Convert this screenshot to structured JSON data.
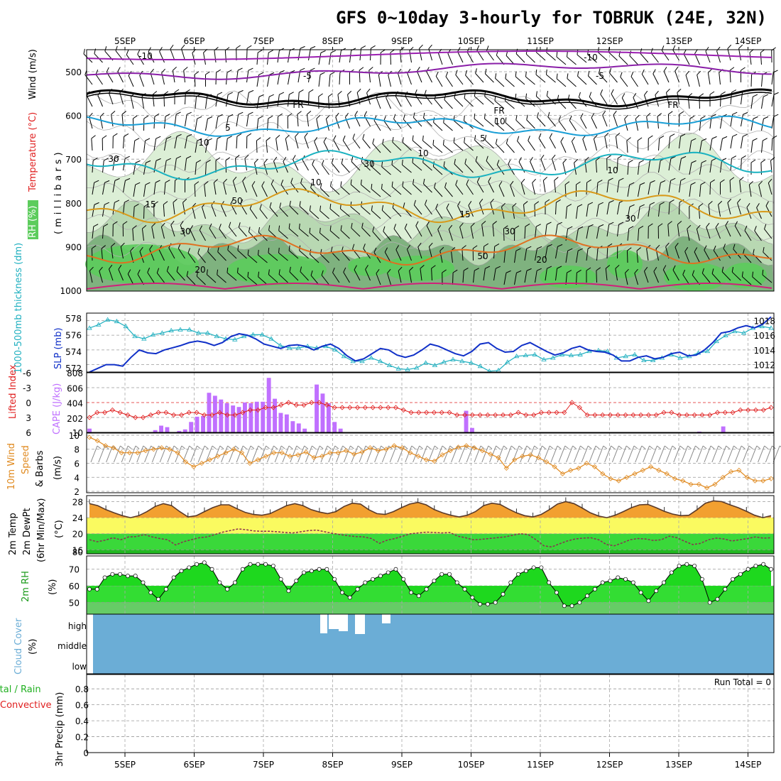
{
  "title": "GFS 0~10day 3-hourly for TOBRUK (24E, 32N)",
  "dates": [
    "5SEP",
    "6SEP",
    "7SEP",
    "8SEP",
    "9SEP",
    "10SEP",
    "11SEP",
    "12SEP",
    "13SEP",
    "14SEP"
  ],
  "colors": {
    "rh_light": "#dcefd6",
    "rh_mid": "#b8d8b2",
    "rh_dark": "#7fb27f",
    "rh_green": "#5ccc5c",
    "temp_m10": "#9a1fb0",
    "temp_m5": "#8a1fa8",
    "temp_0": "#000000",
    "temp_5": "#1a9fd6",
    "temp_10": "#1ab2c0",
    "temp_15": "#d89a1a",
    "temp_20": "#e07020",
    "temp_25": "#d0207a",
    "slp": "#1030c8",
    "thick": "#20b0c0",
    "cape": "#c070ff",
    "lifted": "#e02020",
    "wind10": "#e08a20",
    "t2m_fill": "#f2a030",
    "dewpt": "#8a3050",
    "rh2m": "#1ed81e",
    "cloud": "#6badd6",
    "grid": "#999999"
  },
  "upper_panel": {
    "y_label": "(millibars)",
    "pressure_ticks": [
      "500",
      "600",
      "700",
      "800",
      "900",
      "1000"
    ],
    "legend": {
      "wind": "Wind (m/s)",
      "temp": "Temperature (°C)",
      "rh": "RH (%)"
    },
    "isotherm_labels": [
      "-10",
      "-5",
      "FR",
      "5",
      "10",
      "15",
      "20",
      "-10",
      "-5",
      "FR",
      "5",
      "10",
      "15",
      "20",
      "FR"
    ],
    "rh_labels": [
      "30",
      "50",
      "30",
      "10",
      "30",
      "10",
      "50",
      "30",
      "30",
      "10"
    ]
  },
  "slp_panel": {
    "label_thick": "1000-500mb thickness (dm)",
    "label_slp": "SLP (mb)",
    "thick_ticks": [
      "578",
      "576",
      "574",
      "572"
    ],
    "slp_ticks": [
      "1018",
      "1016",
      "1014",
      "1012"
    ]
  },
  "cape_panel": {
    "label_li": "Lifted Index",
    "label_cape": "CAPE (J/kg)",
    "li_ticks": [
      "-6",
      "-3",
      "0",
      "3",
      "6"
    ],
    "cape_ticks": [
      "808",
      "606",
      "404",
      "202",
      "10"
    ]
  },
  "wind_panel": {
    "label": "10m Wind Speed & Barbs",
    "label_a": "10m Wind",
    "label_b": "Speed",
    "label_c": "& Barbs",
    "unit": "(m/s)",
    "ticks": [
      "10",
      "8",
      "6",
      "4",
      "2"
    ]
  },
  "temp_panel": {
    "label_a": "2m Temp",
    "label_b": "2m DewPt",
    "label_c": "(6hr Min/Max)",
    "unit": "(°C)",
    "ticks": [
      "28",
      "24",
      "20",
      "16",
      "80"
    ]
  },
  "rh_panel": {
    "label": "2m RH",
    "unit": "(%)",
    "ticks": [
      "70",
      "60",
      "50"
    ]
  },
  "cloud_panel": {
    "label": "Cloud Cover",
    "unit": "(%)",
    "levels": [
      "high",
      "middle",
      "low"
    ]
  },
  "precip_panel": {
    "label_a": "Total / Rain",
    "label_b": "Convective",
    "label_c": "3hr Precip (mm)",
    "run_total": "Run Total = 0",
    "ticks": [
      "0.8",
      "0.6",
      "0.4",
      "0.2",
      "0"
    ]
  },
  "chart_data": {
    "type": "line",
    "x": "3-hourly steps over 10 days (5 SEP – 14 SEP)",
    "series": [
      {
        "name": "SLP (mb)",
        "values": [
          1011,
          1011.5,
          1012,
          1012,
          1011.8,
          1013,
          1014,
          1013.6,
          1013.5,
          1014,
          1014.3,
          1014.6,
          1015,
          1015.2,
          1015,
          1014.6,
          1015,
          1015.8,
          1016.2,
          1016,
          1015.5,
          1014.8,
          1014.5,
          1014.2,
          1014.6,
          1014.7,
          1014.5,
          1014,
          1014.5,
          1014.8,
          1014.2,
          1013.2,
          1012.5,
          1012.8,
          1013.5,
          1014.2,
          1014,
          1013.3,
          1013,
          1013.3,
          1014,
          1014.8,
          1014.5,
          1014,
          1013.5,
          1013.2,
          1013.8,
          1014.8,
          1015,
          1014.2,
          1013.7,
          1013.8,
          1014.6,
          1015,
          1014.4,
          1013.8,
          1013.3,
          1013.6,
          1014.2,
          1014.5,
          1014,
          1013.8,
          1013.7,
          1013.3,
          1012.5,
          1012.5,
          1013,
          1013.2,
          1012.8,
          1013,
          1013.5,
          1013.7,
          1013.2,
          1013.3,
          1014,
          1015,
          1016.3,
          1016.5,
          1017,
          1017.3,
          1017,
          1017.5,
          1018.5
        ]
      },
      {
        "name": "1000-500mb thickness (dm)",
        "values": [
          576.8,
          577.2,
          577.8,
          577.6,
          577,
          575.8,
          575.5,
          576,
          576.2,
          576.5,
          576.6,
          576.6,
          576.2,
          576.2,
          575.8,
          575.5,
          575.4,
          575.8,
          576,
          576,
          575.5,
          574.7,
          574.4,
          574.4,
          574.6,
          574.4,
          574.6,
          574.2,
          573.4,
          572.8,
          572.8,
          573.2,
          572.8,
          572.3,
          571.9,
          571.8,
          572,
          572.6,
          572.3,
          572.7,
          573,
          572.8,
          572.6,
          572.2,
          571.6,
          571.7,
          572.7,
          573.4,
          573.5,
          573.6,
          573,
          573.2,
          573.6,
          573.5,
          573.6,
          574,
          574.1,
          574,
          573.2,
          573.4,
          573.6,
          572.9,
          572.9,
          573.2,
          573.6,
          573.2,
          573.4,
          573.8,
          574,
          575.2,
          575.9,
          576.4,
          576.2,
          576.8,
          577,
          576.8
        ]
      },
      {
        "name": "CAPE (J/kg)",
        "values": [
          60,
          10,
          10,
          10,
          10,
          10,
          10,
          10,
          10,
          10,
          10,
          40,
          100,
          80,
          10,
          30,
          50,
          150,
          220,
          230,
          540,
          500,
          450,
          400,
          370,
          350,
          410,
          400,
          420,
          420,
          740,
          460,
          270,
          250,
          160,
          130,
          60,
          10,
          650,
          530,
          400,
          150,
          60,
          10,
          10,
          10,
          10,
          10,
          10,
          10,
          10,
          10,
          10,
          10,
          10,
          10,
          10,
          10,
          10,
          10,
          10,
          10,
          10,
          300,
          70,
          10,
          10,
          10,
          10,
          10,
          10,
          10,
          10,
          10,
          10,
          10,
          10,
          10,
          10,
          10,
          10,
          10,
          10,
          10,
          10,
          10,
          10,
          10,
          10,
          10,
          10,
          10,
          10,
          10,
          10,
          10,
          10,
          10,
          10,
          10,
          10,
          10,
          20,
          10,
          10,
          10,
          90,
          10,
          10,
          10,
          10,
          10,
          10,
          10,
          10
        ]
      },
      {
        "name": "Lifted Index",
        "values": [
          3,
          2,
          2,
          1.5,
          2,
          2.5,
          3,
          3,
          2.5,
          2,
          2,
          2.5,
          2.5,
          2,
          2,
          2.5,
          2.5,
          2,
          2.5,
          2.5,
          2,
          1.5,
          1.5,
          1,
          1,
          0.5,
          0,
          0.5,
          0.5,
          0,
          0,
          0.5,
          1,
          1,
          1,
          1,
          1,
          1,
          1,
          1,
          1,
          1.5,
          2,
          2,
          2,
          2,
          2,
          2,
          2.5,
          2.5,
          2.5,
          2.5,
          2.5,
          2.5,
          2.5,
          2.5,
          2,
          2.5,
          2.5,
          2,
          2,
          2,
          2,
          0,
          1,
          2.5,
          2.5,
          2.5,
          2.5,
          2.5,
          2.5,
          2.5,
          2.5,
          2.5,
          2.5,
          2,
          2,
          2.5,
          2.5,
          2.5,
          2.5,
          2.5,
          2,
          2,
          2,
          1.5,
          1.5,
          1.5,
          1.5,
          1
        ]
      },
      {
        "name": "10m Wind Speed (m/s)",
        "values": [
          9.7,
          9.2,
          8.5,
          8.2,
          7.5,
          7.5,
          7.5,
          7.8,
          8,
          8.2,
          8,
          7.5,
          6.2,
          5.5,
          6,
          6.5,
          7,
          7.5,
          8,
          7.5,
          6,
          6.5,
          7,
          7.5,
          7.5,
          7,
          7.2,
          7.6,
          6.8,
          7,
          7.5,
          7.5,
          7.8,
          7.3,
          7.6,
          8.2,
          7.8,
          8,
          8.5,
          8.2,
          7.5,
          7,
          6.5,
          6.3,
          7.2,
          7.8,
          8.3,
          8.5,
          8.2,
          7.8,
          7.3,
          6.8,
          5.3,
          6.5,
          7,
          7.2,
          6.8,
          6.2,
          5.5,
          4.5,
          5,
          5.3,
          6,
          5.5,
          4.5,
          3.8,
          3.5,
          4,
          4.5,
          5,
          5.5,
          5,
          4.5,
          3.8,
          3.5,
          3,
          3,
          2.5,
          3,
          4,
          4.8,
          5,
          4,
          3.5,
          3.5,
          3.8
        ]
      },
      {
        "name": "2m Temp (°C)",
        "values": [
          27.5,
          27,
          26,
          25.2,
          24.5,
          24,
          24.5,
          25.5,
          26.8,
          27.5,
          27,
          25.5,
          24.2,
          24.5,
          25.5,
          26.5,
          27.2,
          27.2,
          26.2,
          25.3,
          24.8,
          24.6,
          25,
          26,
          27,
          27.5,
          27,
          26,
          25.4,
          25,
          25.5,
          26.8,
          27.6,
          27.4,
          26,
          25,
          24.8,
          25.5,
          26.5,
          27.4,
          27.8,
          27.2,
          26,
          25.2,
          24.6,
          24.2,
          24.6,
          25.5,
          27,
          27.6,
          27.3,
          26.2,
          25.2,
          24.5,
          24.2,
          24.8,
          26,
          27.4,
          28,
          27.5,
          26.4,
          25.2,
          24.4,
          24,
          24.6,
          25.5,
          26.5,
          27.2,
          27.3,
          26.5,
          25.6,
          24.9,
          24.5,
          24.6,
          26,
          27.6,
          28.2,
          28,
          27.2,
          26.5,
          25.6,
          24.6,
          24,
          24.5
        ]
      },
      {
        "name": "2m DewPt (°C)",
        "values": [
          18.5,
          18,
          18.4,
          19,
          18.5,
          19.2,
          19.3,
          19.8,
          19.2,
          18.8,
          18.5,
          17.2,
          18,
          18.5,
          19,
          19.2,
          19.8,
          20.4,
          20.8,
          21.2,
          21,
          20.7,
          20.6,
          20.6,
          20.5,
          20.3,
          20.2,
          20.5,
          20.8,
          20.9,
          20.5,
          20.1,
          19.8,
          19.5,
          19.3,
          19.2,
          18.8,
          17.6,
          18.4,
          18.8,
          19.4,
          20,
          20.2,
          20.4,
          20.3,
          20.2,
          20.3,
          19.4,
          19,
          18.5,
          18.6,
          18.8,
          19,
          19.2,
          19.6,
          20,
          19.8,
          18.5,
          17,
          16.7,
          17.5,
          18.2,
          18.7,
          18.9,
          19,
          18.5,
          17.3,
          17,
          17.7,
          18.5,
          18.8,
          18.7,
          18.3,
          18.5,
          19.4,
          19,
          18.1,
          17.3,
          17.6,
          18.5,
          18.9,
          18.7,
          18.2,
          18.5,
          18.8,
          19.2,
          18.9,
          19
        ]
      },
      {
        "name": "2m RH (%)",
        "values": [
          58,
          58,
          65,
          67,
          67,
          66,
          66,
          62,
          56,
          52,
          58,
          65,
          69,
          71,
          73,
          74,
          70,
          62,
          58,
          62,
          70,
          73,
          73,
          73,
          72,
          64,
          57,
          63,
          68,
          69,
          70,
          70,
          64,
          56,
          53,
          58,
          62,
          64,
          66,
          68,
          70,
          64,
          56,
          54,
          58,
          63,
          67,
          67,
          62,
          58,
          53,
          49,
          49,
          50,
          55,
          62,
          67,
          69,
          71,
          71,
          62,
          56,
          48,
          48,
          50,
          54,
          58,
          62,
          63,
          65,
          64,
          62,
          56,
          51,
          57,
          62,
          68,
          72,
          73,
          72,
          64,
          50,
          52,
          58,
          64,
          67,
          70,
          72,
          73,
          70
        ]
      }
    ],
    "xlabel": "",
    "title": "GFS 0~10day 3-hourly for TOBRUK (24E, 32N)"
  }
}
